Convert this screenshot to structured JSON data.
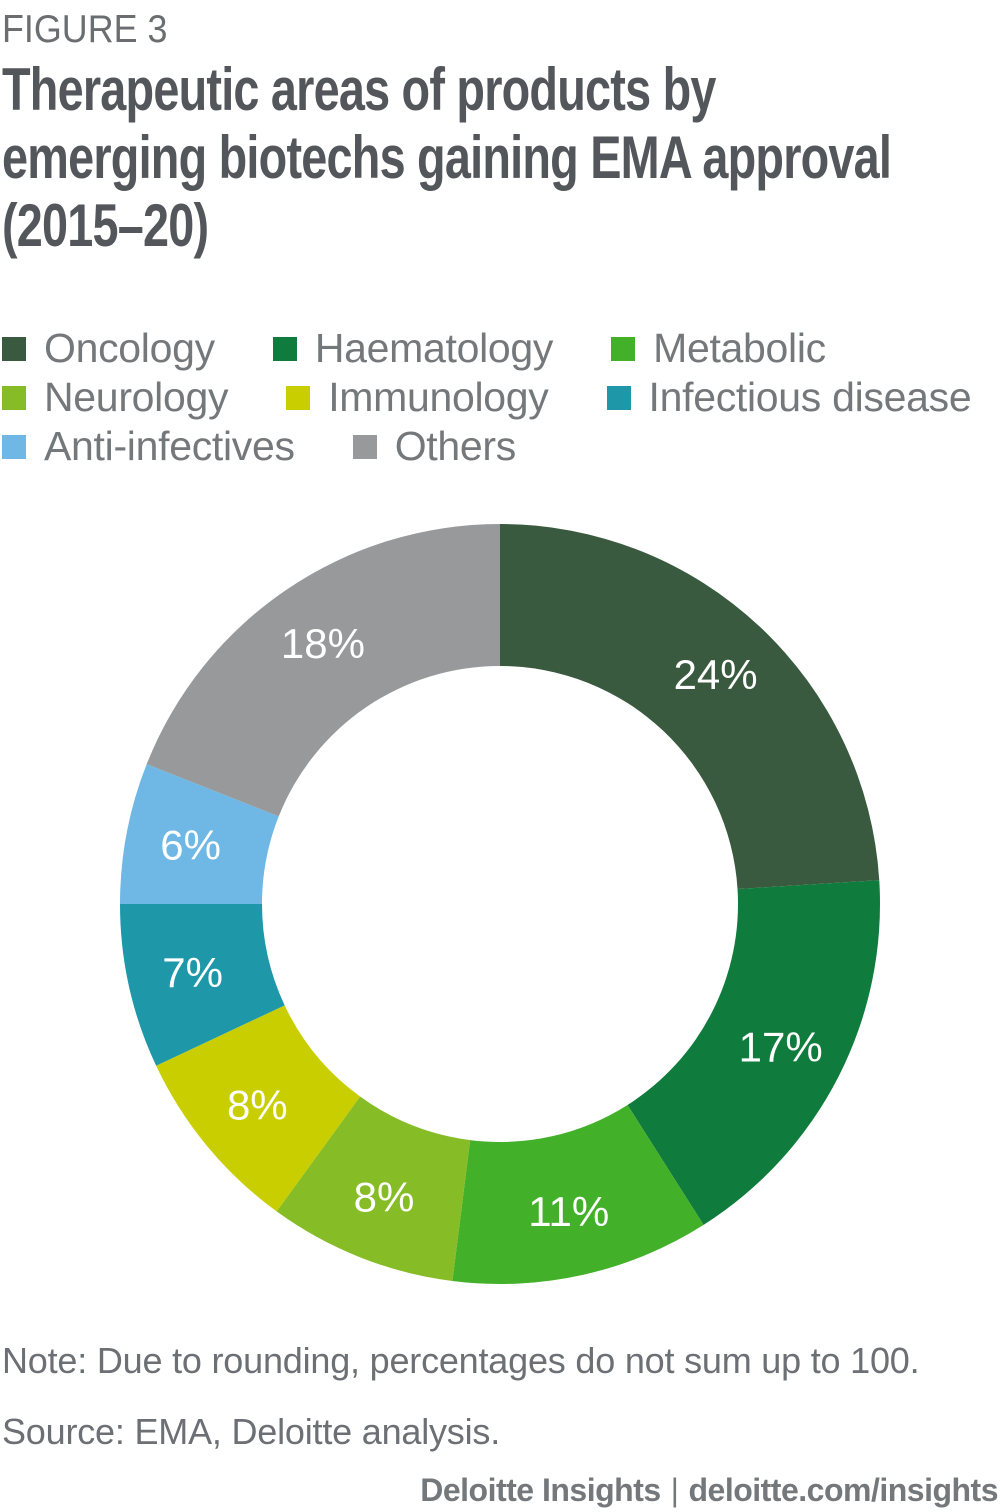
{
  "figure_label": "FIGURE 3",
  "header": {
    "title": "Therapeutic areas of products by emerging biotechs gaining EMA approval (2015–20)",
    "title_lines": [
      "Therapeutic areas of products by",
      "emerging biotechs gaining EMA approval",
      "(2015–20)"
    ]
  },
  "chart_data": {
    "type": "pie",
    "subtype": "donut",
    "unit": "%",
    "labels": [
      "Oncology",
      "Haematology",
      "Metabolic",
      "Neurology",
      "Immunology",
      "Infectious disease",
      "Anti-infectives",
      "Others"
    ],
    "values": [
      24,
      17,
      11,
      8,
      8,
      7,
      6,
      18
    ],
    "display_labels": [
      "24%",
      "17%",
      "11%",
      "8%",
      "8%",
      "7%",
      "6%",
      "18%"
    ],
    "colors": [
      "#395A3F",
      "#0F7B3C",
      "#43B02A",
      "#86BC25",
      "#C9CE00",
      "#1E97A9",
      "#6FB8E5",
      "#97999B"
    ],
    "start_angle_deg": 0,
    "direction": "clockwise",
    "legend_position": "top-left",
    "value_label_color": "#FFFFFF"
  },
  "note_text": "Note: Due to rounding, percentages do not sum up to 100.",
  "source_text": "Source: EMA, Deloitte analysis.",
  "footer": {
    "brand": "Deloitte Insights",
    "separator": "|",
    "url": "deloitte.com/insights"
  },
  "palette": {
    "figure_label_color": "#6B6E71",
    "title_color": "#53565A",
    "legend_text_color": "#75787B",
    "note_text_color": "#6C6F73",
    "footer_text_color": "#75787B",
    "background": "#FFFFFF"
  }
}
